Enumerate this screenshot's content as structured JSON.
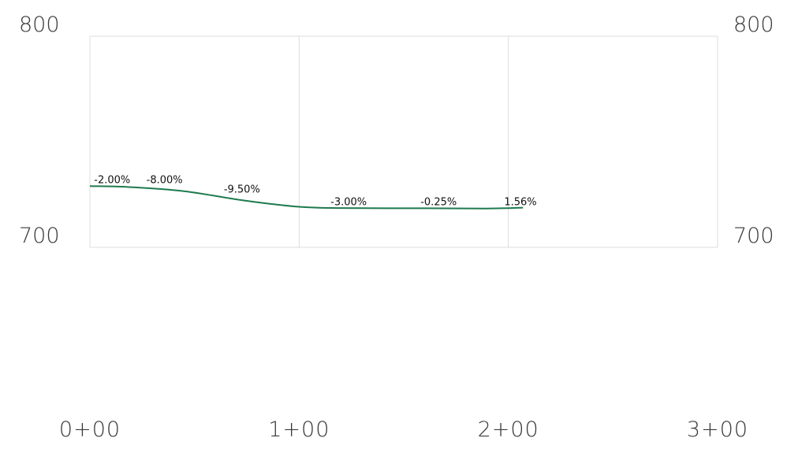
{
  "chart_data": {
    "type": "line",
    "y_ticks": [
      "800",
      "700"
    ],
    "y_range": [
      700,
      800
    ],
    "x_ticks": [
      "0+00",
      "1+00",
      "2+00",
      "3+00"
    ],
    "x_range": [
      0,
      300
    ],
    "series": [
      {
        "color": "#1e7a4e",
        "points": [
          {
            "x": 0,
            "y": 729
          },
          {
            "x": 18,
            "y": 728.6
          },
          {
            "x": 45,
            "y": 726.6
          },
          {
            "x": 75,
            "y": 722
          },
          {
            "x": 100,
            "y": 719.2
          },
          {
            "x": 120,
            "y": 718.6
          },
          {
            "x": 160,
            "y": 718.5
          },
          {
            "x": 190,
            "y": 718.4
          },
          {
            "x": 207,
            "y": 718.8
          }
        ]
      }
    ],
    "annotations": [
      {
        "text": "-2.00%",
        "x": 2,
        "y": 730.5
      },
      {
        "text": "-8.00%",
        "x": 27,
        "y": 730.5
      },
      {
        "text": "-9.50%",
        "x": 64,
        "y": 726
      },
      {
        "text": "-3.00%",
        "x": 115,
        "y": 720
      },
      {
        "text": "-0.25%",
        "x": 158,
        "y": 720
      },
      {
        "text": "1.56%",
        "x": 198,
        "y": 720
      }
    ],
    "grid": true,
    "axes_labels_both_sides": true
  }
}
